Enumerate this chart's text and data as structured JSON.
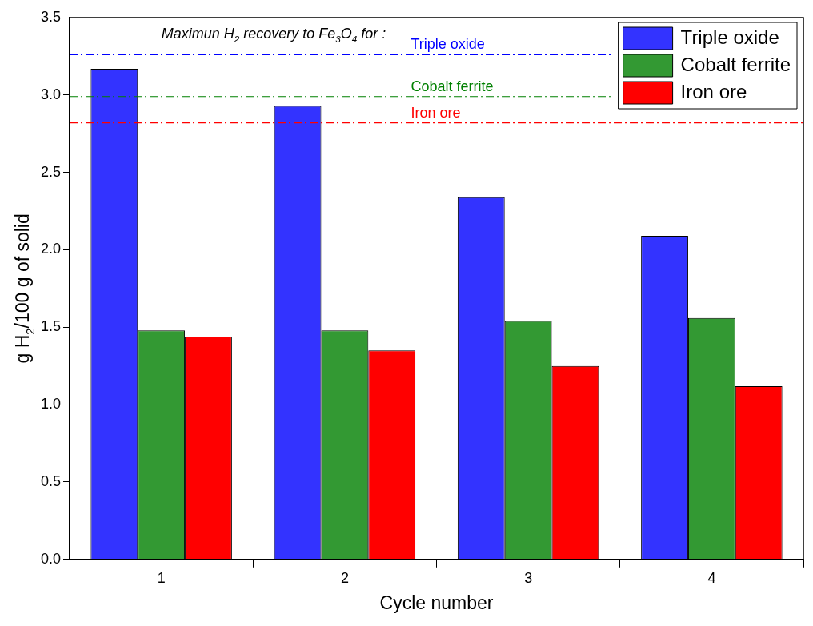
{
  "chart_data": {
    "type": "bar",
    "xlabel": "Cycle number",
    "ylabel": "g H$_{2}$/100 g of solid",
    "categories": [
      "1",
      "2",
      "3",
      "4"
    ],
    "series": [
      {
        "name": "Triple oxide",
        "color": "#3333ff",
        "values": [
          3.17,
          2.93,
          2.34,
          2.09
        ]
      },
      {
        "name": "Cobalt ferrite",
        "color": "#339933",
        "values": [
          1.48,
          1.48,
          1.54,
          1.56
        ]
      },
      {
        "name": "Iron ore",
        "color": "#ff0000",
        "values": [
          1.44,
          1.35,
          1.25,
          1.12
        ]
      }
    ],
    "ylim": [
      0,
      3.5
    ],
    "yticks": [
      {
        "value": 0,
        "label": "0.0"
      },
      {
        "value": 0.5,
        "label": "0.5"
      },
      {
        "value": 1,
        "label": "1.0"
      },
      {
        "value": 1.5,
        "label": "1.5"
      },
      {
        "value": 2,
        "label": "2.0"
      },
      {
        "value": 2.5,
        "label": "2.5"
      },
      {
        "value": 3,
        "label": "3.0"
      },
      {
        "value": 3.5,
        "label": "3.5"
      }
    ],
    "ref_lines": [
      {
        "axis": "y",
        "value": 3.26,
        "label": "Triple oxide",
        "color": "#0000ff",
        "line_style": "dashdot"
      },
      {
        "axis": "y",
        "value": 2.99,
        "label": "Cobalt ferrite",
        "color": "#008000",
        "line_style": "dashdot"
      },
      {
        "axis": "y",
        "value": 2.82,
        "label": "Iron ore",
        "color": "#ff0000",
        "line_style": "dashdot"
      }
    ],
    "annotations": [
      "Maximun H$_{2}$ recovery to Fe$_{3}$O$_{4}$ for :"
    ],
    "legend": "top right",
    "grid": false
  }
}
